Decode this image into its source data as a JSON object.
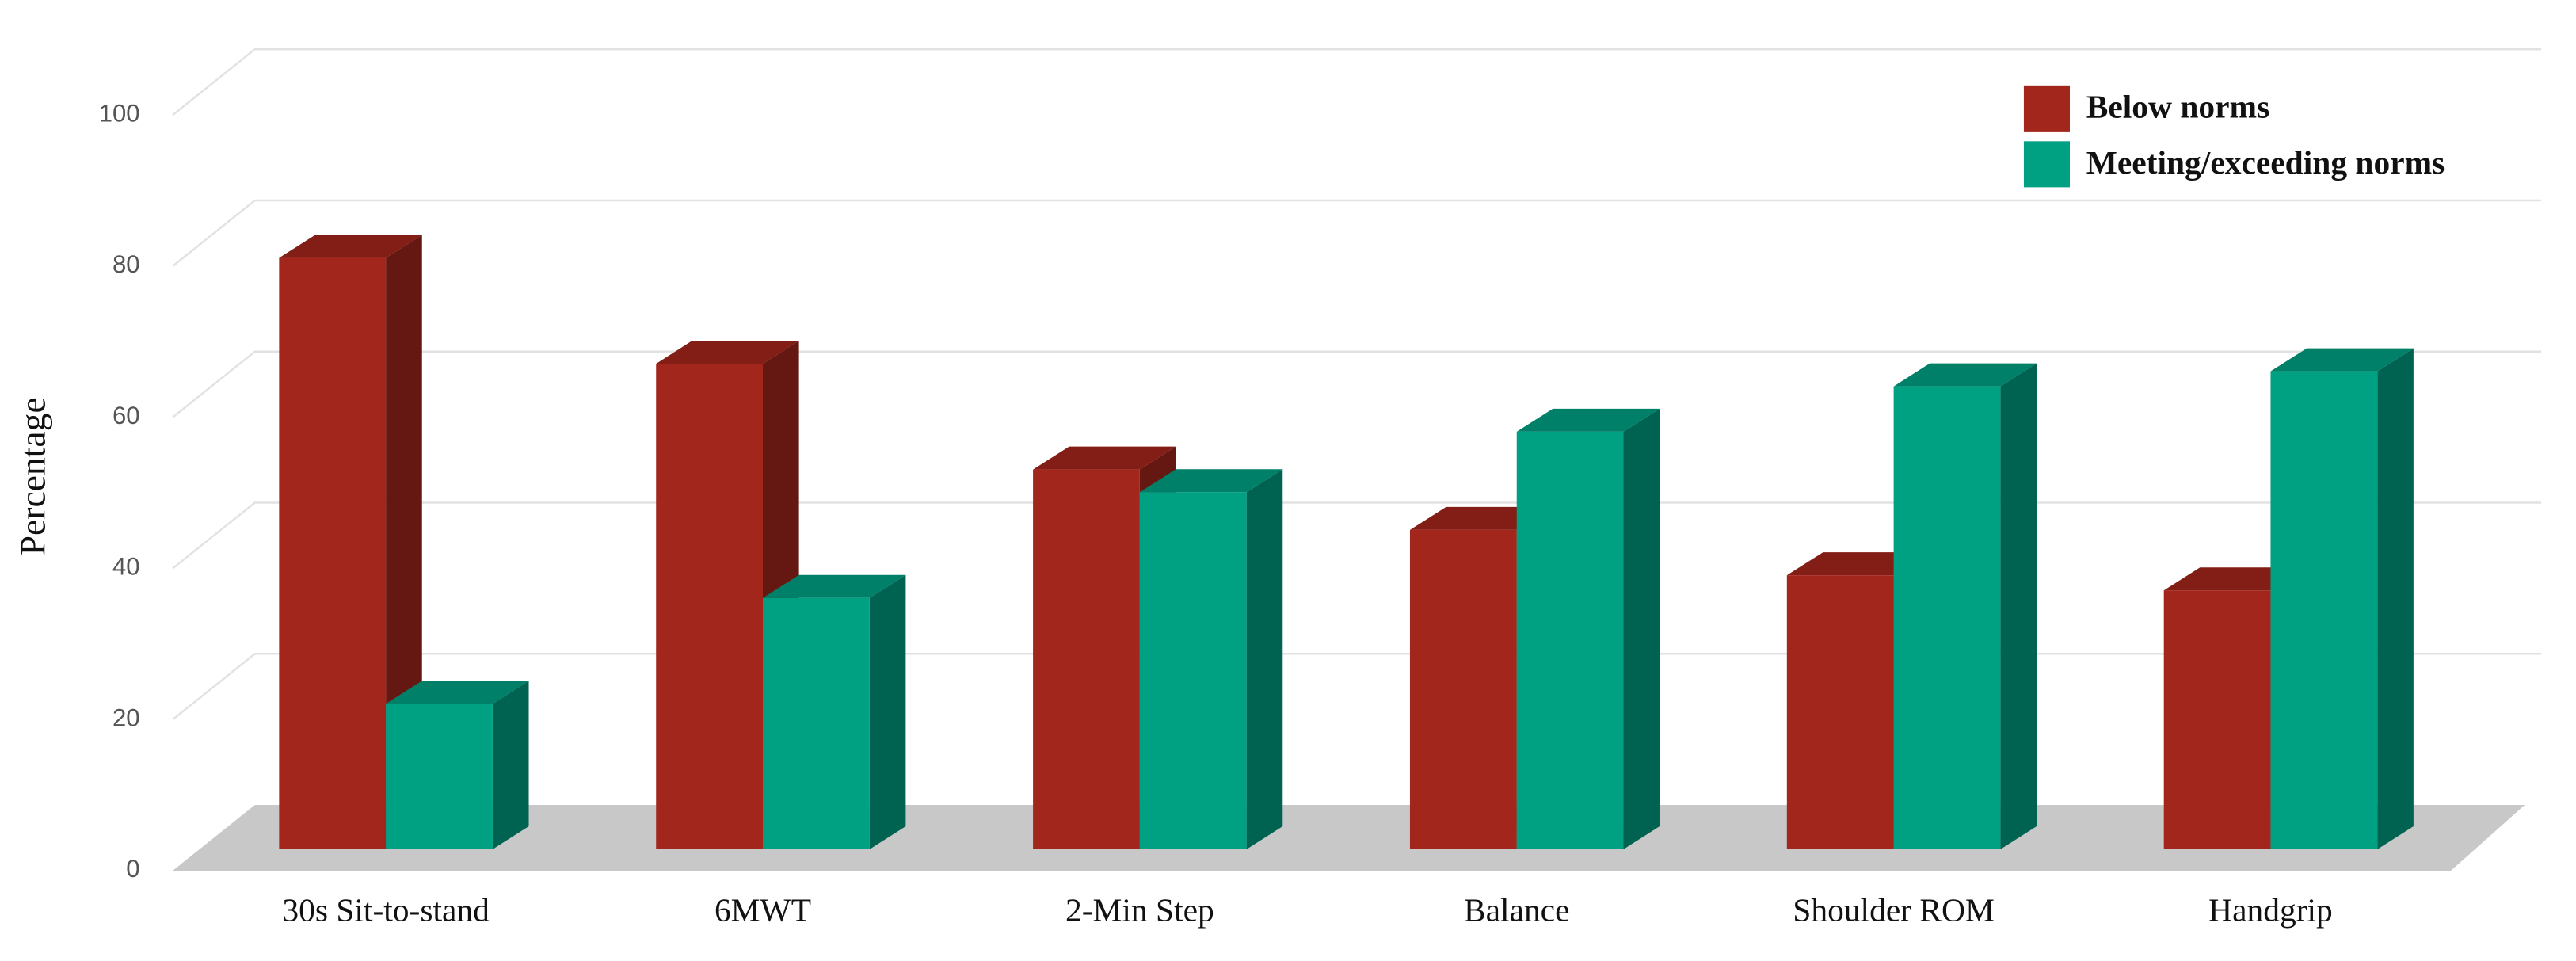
{
  "chart_data": {
    "type": "bar3d",
    "y_label": "Percentage",
    "categories": [
      "30s Sit-to-stand",
      "6MWT",
      "2-Min Step",
      "Balance",
      "Shoulder ROM",
      "Handgrip"
    ],
    "series": [
      {
        "name": "Below norms",
        "color": "#a3261c",
        "values": [
          80,
          66,
          52,
          44,
          38,
          36
        ]
      },
      {
        "name": "Meeting/exceeding norms",
        "color": "#00a082",
        "values": [
          21,
          35,
          49,
          57,
          63,
          65
        ]
      }
    ],
    "ylim": [
      0,
      100
    ],
    "yticks": [
      0,
      20,
      40,
      60,
      80,
      100
    ],
    "grid": true,
    "legend": "top-right"
  }
}
